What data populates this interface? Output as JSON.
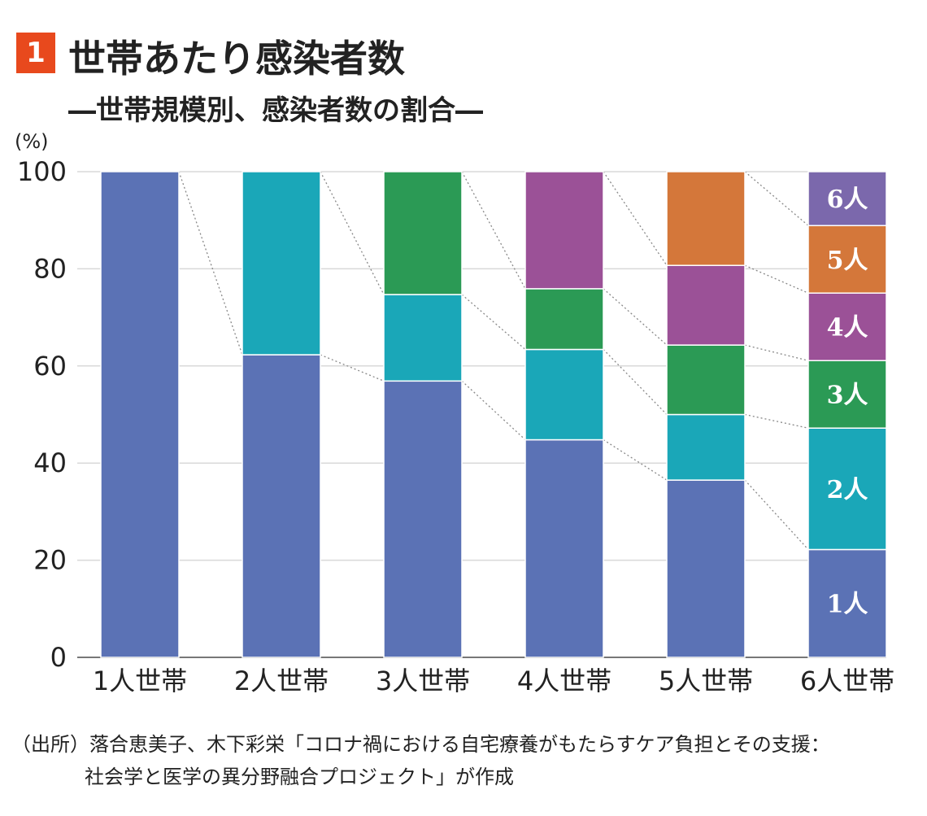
{
  "header": {
    "number": "1",
    "title": "世帯あたり感染者数",
    "subtitle": "―世帯規模別、感染者数の割合―"
  },
  "source": {
    "line1": "（出所）落合恵美子、木下彩栄「コロナ禍における自宅療養がもたらすケア負担とその支援：",
    "line2": "社会学と医学の異分野融合プロジェクト」が作成"
  },
  "colors": {
    "p1": "#5b72b5",
    "p2": "#1aa7b8",
    "p3": "#2b9a55",
    "p4": "#9b5197",
    "p5": "#d4773a",
    "p6": "#7b68ac",
    "badge": "#e8491d"
  },
  "chart_data": {
    "type": "bar",
    "stacked": true,
    "unit": "(%)",
    "ylim": [
      0,
      100
    ],
    "yticks": [
      0,
      20,
      40,
      60,
      80,
      100
    ],
    "grid": true,
    "categories": [
      "1人世帯",
      "2人世帯",
      "3人世帯",
      "4人世帯",
      "5人世帯",
      "6人世帯"
    ],
    "series": [
      {
        "name": "1人",
        "color": "#5b72b5",
        "values": [
          100,
          62.3,
          56.9,
          44.8,
          36.5,
          22.2
        ]
      },
      {
        "name": "2人",
        "color": "#1aa7b8",
        "values": [
          null,
          37.7,
          17.8,
          18.6,
          13.5,
          25.0
        ]
      },
      {
        "name": "3人",
        "color": "#2b9a55",
        "values": [
          null,
          null,
          25.3,
          12.5,
          14.3,
          13.9
        ]
      },
      {
        "name": "4人",
        "color": "#9b5197",
        "values": [
          null,
          null,
          null,
          24.1,
          16.4,
          13.9
        ]
      },
      {
        "name": "5人",
        "color": "#d4773a",
        "values": [
          null,
          null,
          null,
          null,
          19.3,
          13.9
        ]
      },
      {
        "name": "6人",
        "color": "#7b68ac",
        "values": [
          null,
          null,
          null,
          null,
          null,
          11.1
        ]
      }
    ]
  }
}
